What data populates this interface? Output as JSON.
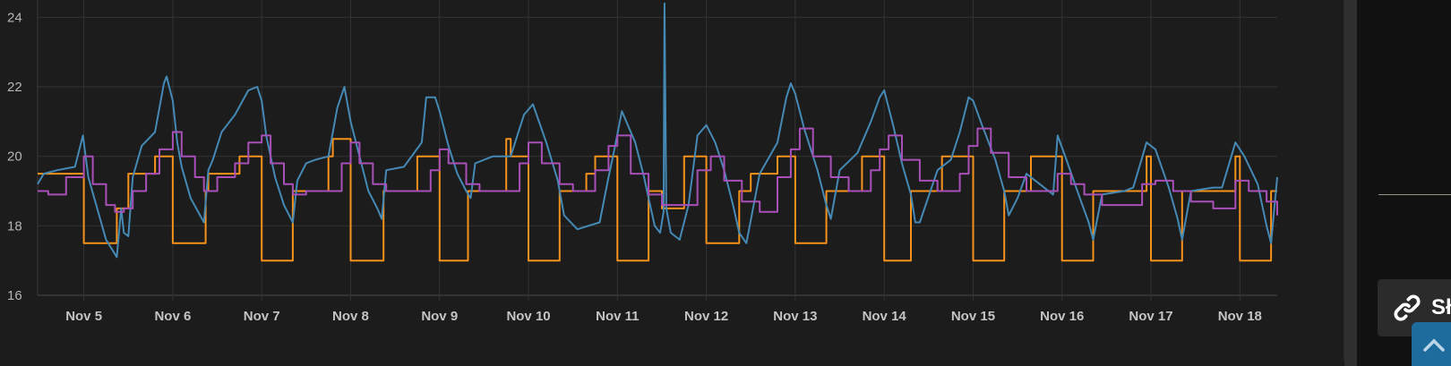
{
  "chart_data": {
    "type": "line",
    "title": "",
    "xlabel": "",
    "ylabel": "",
    "ylim": [
      16,
      24.5
    ],
    "y_ticks": [
      "16",
      "18",
      "20",
      "22",
      "24"
    ],
    "x_tick_labels": [
      "Nov 5",
      "Nov 6",
      "Nov 7",
      "Nov 8",
      "Nov 9",
      "Nov 10",
      "Nov 11",
      "Nov 12",
      "Nov 13",
      "Nov 14",
      "Nov 15",
      "Nov 16",
      "Nov 17",
      "Nov 18"
    ],
    "x_range_days": [
      4.48,
      18.42
    ],
    "grid": true,
    "series": [
      {
        "color": "#f5921c",
        "step": true,
        "x": [
          4.48,
          5.0,
          5.37,
          5.5,
          5.8,
          6.0,
          6.37,
          6.4,
          6.75,
          7.0,
          7.35,
          7.5,
          7.75,
          7.8,
          8.0,
          8.15,
          8.37,
          8.5,
          8.75,
          9.0,
          9.32,
          9.35,
          9.75,
          9.8,
          9.95,
          10.0,
          10.35,
          10.5,
          10.65,
          10.75,
          11.0,
          11.35,
          11.5,
          11.6,
          11.75,
          11.8,
          12.0,
          12.37,
          12.5,
          12.7,
          12.8,
          13.0,
          13.35,
          13.5,
          13.75,
          14.0,
          14.3,
          14.35,
          14.65,
          15.0,
          15.35,
          15.5,
          15.65,
          16.0,
          16.35,
          16.45,
          16.95,
          17.0,
          17.35,
          17.5,
          17.95,
          18.0,
          18.35,
          18.42
        ],
        "values": [
          19.5,
          17.5,
          18.5,
          19.5,
          20.0,
          17.5,
          19.0,
          19.5,
          20.0,
          17.0,
          19.0,
          19.0,
          20.0,
          20.5,
          17.0,
          17.0,
          19.0,
          19.0,
          20.0,
          17.0,
          19.0,
          19.0,
          20.5,
          20.0,
          20.0,
          17.0,
          19.0,
          19.0,
          19.5,
          20.0,
          17.0,
          19.0,
          18.5,
          18.5,
          20.0,
          20.0,
          17.5,
          19.0,
          19.5,
          19.5,
          20.0,
          17.5,
          19.0,
          19.0,
          20.0,
          17.0,
          19.0,
          19.0,
          20.0,
          17.0,
          19.0,
          19.0,
          20.0,
          17.0,
          19.0,
          19.0,
          20.0,
          17.0,
          19.0,
          19.0,
          20.0,
          17.0,
          19.0,
          19.0
        ]
      },
      {
        "color": "#4589b5",
        "step": false,
        "x": [
          4.48,
          4.55,
          4.7,
          4.9,
          4.99,
          5.05,
          5.15,
          5.25,
          5.37,
          5.42,
          5.45,
          5.5,
          5.55,
          5.65,
          5.8,
          5.9,
          5.93,
          6.0,
          6.05,
          6.1,
          6.2,
          6.35,
          6.4,
          6.45,
          6.55,
          6.7,
          6.85,
          6.95,
          7.0,
          7.05,
          7.15,
          7.25,
          7.35,
          7.4,
          7.5,
          7.6,
          7.75,
          7.85,
          7.93,
          8.0,
          8.1,
          8.2,
          8.3,
          8.35,
          8.4,
          8.6,
          8.8,
          8.85,
          8.95,
          9.0,
          9.1,
          9.2,
          9.3,
          9.35,
          9.4,
          9.6,
          9.8,
          9.9,
          9.95,
          10.05,
          10.2,
          10.33,
          10.4,
          10.55,
          10.8,
          10.9,
          10.95,
          11.05,
          11.2,
          11.3,
          11.35,
          11.42,
          11.48,
          11.52,
          11.53,
          11.55,
          11.6,
          11.7,
          11.8,
          11.9,
          12.0,
          12.1,
          12.2,
          12.3,
          12.37,
          12.45,
          12.6,
          12.8,
          12.9,
          12.95,
          13.0,
          13.1,
          13.25,
          13.35,
          13.4,
          13.5,
          13.7,
          13.85,
          13.95,
          14.0,
          14.1,
          14.2,
          14.3,
          14.35,
          14.4,
          14.6,
          14.75,
          14.85,
          14.95,
          15.0,
          15.1,
          15.25,
          15.35,
          15.4,
          15.5,
          15.6,
          15.75,
          15.9,
          15.95,
          16.05,
          16.2,
          16.3,
          16.35,
          16.45,
          16.7,
          16.8,
          16.95,
          17.05,
          17.2,
          17.3,
          17.35,
          17.45,
          17.7,
          17.8,
          17.95,
          18.05,
          18.2,
          18.3,
          18.35,
          18.42
        ],
        "values": [
          19.2,
          19.5,
          19.6,
          19.7,
          20.6,
          19.4,
          18.5,
          17.6,
          17.1,
          18.5,
          17.8,
          17.7,
          19.4,
          20.3,
          20.7,
          22.1,
          22.3,
          21.6,
          20.4,
          19.7,
          18.8,
          18.1,
          19.6,
          19.9,
          20.7,
          21.2,
          21.9,
          22.0,
          21.6,
          20.6,
          19.4,
          18.6,
          18.1,
          19.3,
          19.8,
          19.9,
          20.0,
          21.4,
          22.0,
          21.0,
          20.0,
          19.0,
          18.5,
          18.2,
          19.6,
          19.7,
          20.4,
          21.7,
          21.7,
          21.3,
          20.3,
          19.5,
          19.0,
          18.8,
          19.8,
          20.0,
          20.0,
          20.8,
          21.2,
          21.5,
          20.4,
          19.3,
          18.3,
          17.9,
          18.1,
          19.4,
          20.0,
          21.3,
          20.4,
          19.4,
          18.8,
          18.0,
          17.8,
          18.4,
          24.4,
          18.5,
          17.8,
          17.6,
          18.6,
          20.6,
          20.9,
          20.4,
          19.6,
          18.6,
          17.8,
          17.5,
          19.5,
          20.4,
          21.7,
          22.1,
          21.8,
          20.8,
          19.6,
          18.6,
          18.2,
          19.6,
          20.1,
          21.0,
          21.7,
          21.9,
          20.9,
          19.8,
          18.9,
          18.1,
          18.1,
          19.6,
          19.9,
          20.7,
          21.7,
          21.6,
          20.9,
          19.9,
          19.0,
          18.3,
          18.8,
          19.5,
          19.2,
          18.9,
          20.6,
          19.9,
          18.8,
          18.1,
          17.6,
          18.9,
          19.0,
          19.1,
          20.4,
          20.2,
          19.1,
          18.2,
          17.6,
          19.0,
          19.1,
          19.1,
          20.4,
          20.0,
          19.2,
          18.0,
          17.5,
          19.4
        ]
      },
      {
        "color": "#a84fb8",
        "step": true,
        "x": [
          4.48,
          4.6,
          4.8,
          5.0,
          5.1,
          5.25,
          5.35,
          5.45,
          5.55,
          5.7,
          5.85,
          6.0,
          6.1,
          6.25,
          6.35,
          6.5,
          6.7,
          6.85,
          7.0,
          7.1,
          7.25,
          7.35,
          7.5,
          7.75,
          7.9,
          8.0,
          8.1,
          8.25,
          8.4,
          8.7,
          8.9,
          9.0,
          9.1,
          9.3,
          9.45,
          9.7,
          9.9,
          10.0,
          10.15,
          10.35,
          10.5,
          10.75,
          10.9,
          11.0,
          11.15,
          11.35,
          11.5,
          11.75,
          11.9,
          12.05,
          12.2,
          12.4,
          12.6,
          12.8,
          12.95,
          13.05,
          13.2,
          13.4,
          13.6,
          13.85,
          13.95,
          14.05,
          14.2,
          14.4,
          14.6,
          14.85,
          14.95,
          15.05,
          15.2,
          15.4,
          15.6,
          15.85,
          15.95,
          16.1,
          16.25,
          16.45,
          16.7,
          16.9,
          17.05,
          17.25,
          17.45,
          17.7,
          17.95,
          18.1,
          18.3,
          18.42
        ],
        "values": [
          19.0,
          18.9,
          19.4,
          20.0,
          19.2,
          18.6,
          18.4,
          18.5,
          19.0,
          19.5,
          20.2,
          20.7,
          20.0,
          19.4,
          19.0,
          19.4,
          19.8,
          20.4,
          20.6,
          19.8,
          19.2,
          18.9,
          19.0,
          19.0,
          19.8,
          20.4,
          19.8,
          19.2,
          19.0,
          19.0,
          19.6,
          20.2,
          19.8,
          19.2,
          19.0,
          19.0,
          19.8,
          20.4,
          19.8,
          19.2,
          19.0,
          19.6,
          20.3,
          20.6,
          19.5,
          18.9,
          18.6,
          18.6,
          19.6,
          20.0,
          19.3,
          18.7,
          18.4,
          19.4,
          20.2,
          20.8,
          20.0,
          19.4,
          19.0,
          19.6,
          20.2,
          20.6,
          19.9,
          19.3,
          19.0,
          19.5,
          20.3,
          20.8,
          20.1,
          19.4,
          19.0,
          19.0,
          19.5,
          19.2,
          18.9,
          18.6,
          18.6,
          19.2,
          19.3,
          19.0,
          18.7,
          18.5,
          19.3,
          19.0,
          18.7,
          18.3
        ]
      }
    ]
  },
  "side_panel": {
    "share_label": "Sł"
  }
}
